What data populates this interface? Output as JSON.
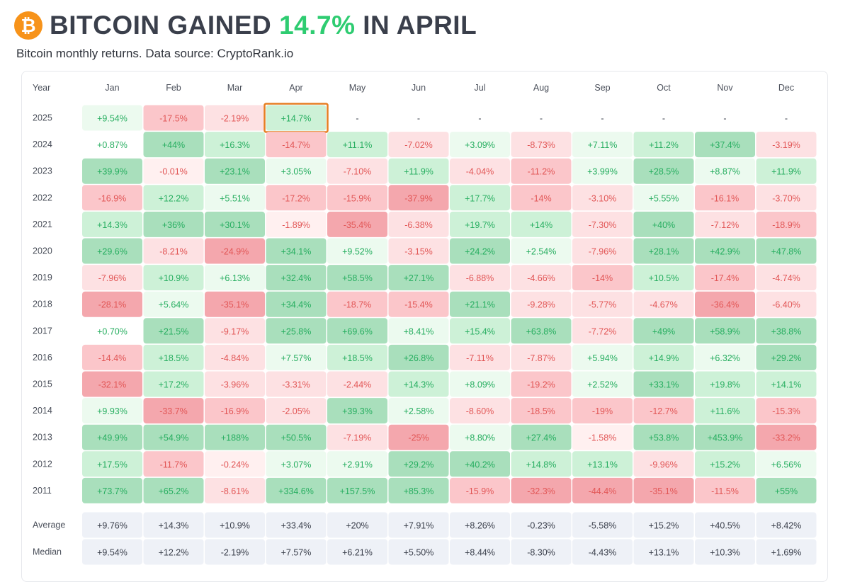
{
  "header": {
    "logo_glyph": "₿",
    "title_prefix": "BITCOIN GAINED ",
    "title_highlight": "14.7%",
    "title_suffix": " IN APRIL",
    "subtitle": "Bitcoin monthly returns. Data source: CryptoRank.io"
  },
  "colors": {
    "positive_text": "#27ae60",
    "negative_text": "#e25757",
    "neutral_text": "#3a3f4b",
    "highlight_border": "#e67e22",
    "summary_bg": "#eef1f7",
    "accent": "#2ecc71"
  },
  "chart_data": {
    "type": "heatmap",
    "title": "BITCOIN GAINED 14.7% IN APRIL",
    "subtitle": "Bitcoin monthly returns. Data source: CryptoRank.io",
    "corner_label": "Year",
    "columns": [
      "Jan",
      "Feb",
      "Mar",
      "Apr",
      "May",
      "Jun",
      "Jul",
      "Aug",
      "Sep",
      "Oct",
      "Nov",
      "Dec"
    ],
    "highlight": {
      "row": "2025",
      "column": "Apr"
    },
    "rows": [
      {
        "label": "2025",
        "values": [
          "+9.54%",
          "-17.5%",
          "-2.19%",
          "+14.7%",
          "-",
          "-",
          "-",
          "-",
          "-",
          "-",
          "-",
          "-"
        ]
      },
      {
        "label": "2024",
        "values": [
          "+0.87%",
          "+44%",
          "+16.3%",
          "-14.7%",
          "+11.1%",
          "-7.02%",
          "+3.09%",
          "-8.73%",
          "+7.11%",
          "+11.2%",
          "+37.4%",
          "-3.19%"
        ]
      },
      {
        "label": "2023",
        "values": [
          "+39.9%",
          "-0.01%",
          "+23.1%",
          "+3.05%",
          "-7.10%",
          "+11.9%",
          "-4.04%",
          "-11.2%",
          "+3.99%",
          "+28.5%",
          "+8.87%",
          "+11.9%"
        ]
      },
      {
        "label": "2022",
        "values": [
          "-16.9%",
          "+12.2%",
          "+5.51%",
          "-17.2%",
          "-15.9%",
          "-37.9%",
          "+17.7%",
          "-14%",
          "-3.10%",
          "+5.55%",
          "-16.1%",
          "-3.70%"
        ]
      },
      {
        "label": "2021",
        "values": [
          "+14.3%",
          "+36%",
          "+30.1%",
          "-1.89%",
          "-35.4%",
          "-6.38%",
          "+19.7%",
          "+14%",
          "-7.30%",
          "+40%",
          "-7.12%",
          "-18.9%"
        ]
      },
      {
        "label": "2020",
        "values": [
          "+29.6%",
          "-8.21%",
          "-24.9%",
          "+34.1%",
          "+9.52%",
          "-3.15%",
          "+24.2%",
          "+2.54%",
          "-7.96%",
          "+28.1%",
          "+42.9%",
          "+47.8%"
        ]
      },
      {
        "label": "2019",
        "values": [
          "-7.96%",
          "+10.9%",
          "+6.13%",
          "+32.4%",
          "+58.5%",
          "+27.1%",
          "-6.88%",
          "-4.66%",
          "-14%",
          "+10.5%",
          "-17.4%",
          "-4.74%"
        ]
      },
      {
        "label": "2018",
        "values": [
          "-28.1%",
          "+5.64%",
          "-35.1%",
          "+34.4%",
          "-18.7%",
          "-15.4%",
          "+21.1%",
          "-9.28%",
          "-5.77%",
          "-4.67%",
          "-36.4%",
          "-6.40%"
        ]
      },
      {
        "label": "2017",
        "values": [
          "+0.70%",
          "+21.5%",
          "-9.17%",
          "+25.8%",
          "+69.6%",
          "+8.41%",
          "+15.4%",
          "+63.8%",
          "-7.72%",
          "+49%",
          "+58.9%",
          "+38.8%"
        ]
      },
      {
        "label": "2016",
        "values": [
          "-14.4%",
          "+18.5%",
          "-4.84%",
          "+7.57%",
          "+18.5%",
          "+26.8%",
          "-7.11%",
          "-7.87%",
          "+5.94%",
          "+14.9%",
          "+6.32%",
          "+29.2%"
        ]
      },
      {
        "label": "2015",
        "values": [
          "-32.1%",
          "+17.2%",
          "-3.96%",
          "-3.31%",
          "-2.44%",
          "+14.3%",
          "+8.09%",
          "-19.2%",
          "+2.52%",
          "+33.1%",
          "+19.8%",
          "+14.1%"
        ]
      },
      {
        "label": "2014",
        "values": [
          "+9.93%",
          "-33.7%",
          "-16.9%",
          "-2.05%",
          "+39.3%",
          "+2.58%",
          "-8.60%",
          "-18.5%",
          "-19%",
          "-12.7%",
          "+11.6%",
          "-15.3%"
        ]
      },
      {
        "label": "2013",
        "values": [
          "+49.9%",
          "+54.9%",
          "+188%",
          "+50.5%",
          "-7.19%",
          "-25%",
          "+8.80%",
          "+27.4%",
          "-1.58%",
          "+53.8%",
          "+453.9%",
          "-33.2%"
        ]
      },
      {
        "label": "2012",
        "values": [
          "+17.5%",
          "-11.7%",
          "-0.24%",
          "+3.07%",
          "+2.91%",
          "+29.2%",
          "+40.2%",
          "+14.8%",
          "+13.1%",
          "-9.96%",
          "+15.2%",
          "+6.56%"
        ]
      },
      {
        "label": "2011",
        "values": [
          "+73.7%",
          "+65.2%",
          "-8.61%",
          "+334.6%",
          "+157.5%",
          "+85.3%",
          "-15.9%",
          "-32.3%",
          "-44.4%",
          "-35.1%",
          "-11.5%",
          "+55%"
        ]
      }
    ],
    "summary_rows": [
      {
        "label": "Average",
        "values": [
          "+9.76%",
          "+14.3%",
          "+10.9%",
          "+33.4%",
          "+20%",
          "+7.91%",
          "+8.26%",
          "-0.23%",
          "-5.58%",
          "+15.2%",
          "+40.5%",
          "+8.42%"
        ]
      },
      {
        "label": "Median",
        "values": [
          "+9.54%",
          "+12.2%",
          "-2.19%",
          "+7.57%",
          "+6.21%",
          "+5.50%",
          "+8.44%",
          "-8.30%",
          "-4.43%",
          "+13.1%",
          "+10.3%",
          "+1.69%"
        ]
      }
    ]
  }
}
